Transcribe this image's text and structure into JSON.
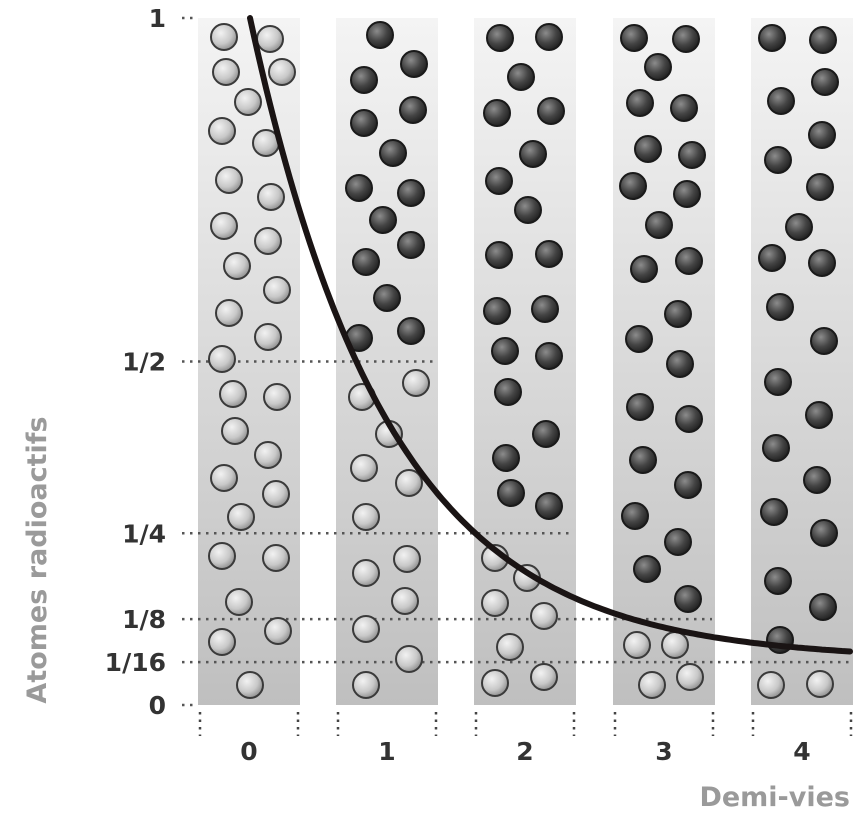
{
  "y_axis": {
    "title": "Atomes radioactifs",
    "ticks": [
      {
        "label": "1",
        "fraction": 1
      },
      {
        "label": "1/2",
        "fraction": 0.5
      },
      {
        "label": "1/4",
        "fraction": 0.25
      },
      {
        "label": "1/8",
        "fraction": 0.125
      },
      {
        "label": "1/16",
        "fraction": 0.0625
      },
      {
        "label": "0",
        "fraction": 0
      }
    ]
  },
  "x_axis": {
    "title": "Demi-vies",
    "ticks": [
      "0",
      "1",
      "2",
      "3",
      "4"
    ]
  },
  "columns": [
    {
      "half_life": "0",
      "radioactive_atoms": 32,
      "decayed_atoms": 0
    },
    {
      "half_life": "1",
      "radioactive_atoms": 16,
      "decayed_atoms": 16
    },
    {
      "half_life": "2",
      "radioactive_atoms": 8,
      "decayed_atoms": 24
    },
    {
      "half_life": "3",
      "radioactive_atoms": 4,
      "decayed_atoms": 28
    },
    {
      "half_life": "4",
      "radioactive_atoms": 2,
      "decayed_atoms": 30
    }
  ],
  "colors": {
    "radioactive_atom": "#c8c8c8",
    "decayed_atom": "#3f3f3f",
    "curve": "#1a1414",
    "column_gradient_top": "#f4f4f4",
    "column_gradient_bottom": "#bfbfbf"
  }
}
